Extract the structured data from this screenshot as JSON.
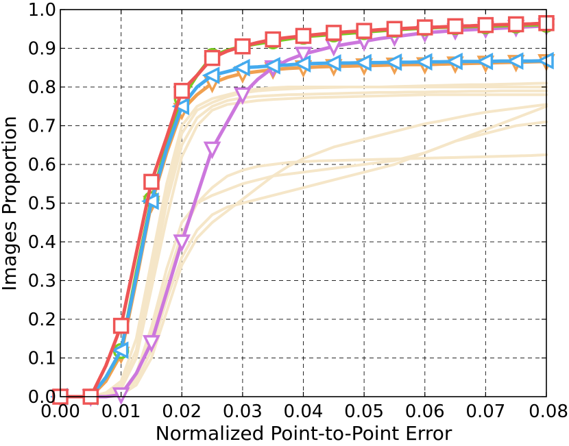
{
  "chart_data": {
    "type": "line",
    "title": "",
    "xlabel": "Normalized Point-to-Point Error",
    "ylabel": "Images Proportion",
    "xlim": [
      0,
      0.08
    ],
    "ylim": [
      0,
      1.0
    ],
    "grid": true,
    "x_ticks": [
      "0.00",
      "0.01",
      "0.02",
      "0.03",
      "0.04",
      "0.05",
      "0.06",
      "0.07",
      "0.08"
    ],
    "y_ticks": [
      "0.0",
      "0.1",
      "0.2",
      "0.3",
      "0.4",
      "0.5",
      "0.6",
      "0.7",
      "0.8",
      "0.9",
      "1.0"
    ],
    "x": [
      0,
      0.0025,
      0.005,
      0.0075,
      0.01,
      0.0125,
      0.015,
      0.0175,
      0.02,
      0.0225,
      0.025,
      0.0275,
      0.03,
      0.0325,
      0.035,
      0.0375,
      0.04,
      0.0425,
      0.045,
      0.0475,
      0.05,
      0.0525,
      0.055,
      0.0575,
      0.06,
      0.0625,
      0.065,
      0.0675,
      0.07,
      0.0725,
      0.075,
      0.0775,
      0.08
    ],
    "background_series": [
      {
        "color": "#f5e6c8",
        "values": [
          0,
          0,
          0,
          0.01,
          0.03,
          0.12,
          0.32,
          0.52,
          0.68,
          0.74,
          0.76,
          0.775,
          0.785,
          0.79,
          0.793,
          0.795,
          0.797,
          0.798,
          0.799,
          0.8,
          0.8,
          0.8,
          0.801,
          0.802,
          0.803,
          0.804,
          0.805,
          0.806,
          0.806,
          0.807,
          0.808,
          0.809,
          0.81
        ]
      },
      {
        "color": "#f5e6c8",
        "values": [
          0,
          0,
          0,
          0.005,
          0.02,
          0.1,
          0.3,
          0.5,
          0.65,
          0.72,
          0.75,
          0.765,
          0.772,
          0.776,
          0.778,
          0.78,
          0.781,
          0.782,
          0.783,
          0.784,
          0.785,
          0.786,
          0.786,
          0.787,
          0.787,
          0.788,
          0.788,
          0.789,
          0.789,
          0.79,
          0.79,
          0.79,
          0.79
        ]
      },
      {
        "color": "#f5e6c8",
        "values": [
          0,
          0,
          0,
          0.01,
          0.04,
          0.15,
          0.35,
          0.55,
          0.7,
          0.75,
          0.77,
          0.78,
          0.79,
          0.795,
          0.798,
          0.8,
          0.8,
          0.8,
          0.8,
          0.8,
          0.8,
          0.8,
          0.8,
          0.8,
          0.8,
          0.8,
          0.8,
          0.8,
          0.8,
          0.8,
          0.8,
          0.8,
          0.8
        ]
      },
      {
        "color": "#f5e6c8",
        "values": [
          0,
          0,
          0,
          0.005,
          0.02,
          0.1,
          0.28,
          0.46,
          0.62,
          0.7,
          0.74,
          0.755,
          0.76,
          0.765,
          0.768,
          0.77,
          0.772,
          0.773,
          0.774,
          0.775,
          0.776,
          0.777,
          0.778,
          0.779,
          0.78,
          0.78,
          0.78,
          0.78,
          0.78,
          0.78,
          0.78,
          0.78,
          0.78
        ]
      },
      {
        "color": "#f5e6c8",
        "values": [
          0,
          0,
          0,
          0,
          0.01,
          0.05,
          0.16,
          0.3,
          0.42,
          0.5,
          0.54,
          0.57,
          0.585,
          0.595,
          0.6,
          0.605,
          0.607,
          0.609,
          0.61,
          0.611,
          0.612,
          0.613,
          0.614,
          0.615,
          0.616,
          0.617,
          0.618,
          0.619,
          0.62,
          0.621,
          0.622,
          0.623,
          0.625
        ]
      },
      {
        "color": "#f5e6c8",
        "values": [
          0,
          0,
          0,
          0,
          0.01,
          0.06,
          0.18,
          0.33,
          0.45,
          0.5,
          0.52,
          0.535,
          0.55,
          0.56,
          0.57,
          0.575,
          0.58,
          0.585,
          0.59,
          0.595,
          0.6,
          0.605,
          0.61,
          0.62,
          0.63,
          0.645,
          0.66,
          0.67,
          0.68,
          0.69,
          0.7,
          0.705,
          0.71
        ]
      },
      {
        "color": "#f5e6c8",
        "values": [
          0,
          0,
          0,
          0,
          0.005,
          0.04,
          0.12,
          0.25,
          0.36,
          0.43,
          0.47,
          0.49,
          0.5,
          0.51,
          0.52,
          0.53,
          0.54,
          0.55,
          0.56,
          0.57,
          0.58,
          0.59,
          0.6,
          0.615,
          0.63,
          0.645,
          0.66,
          0.675,
          0.69,
          0.705,
          0.72,
          0.735,
          0.75
        ]
      },
      {
        "color": "#f5e6c8",
        "values": [
          0,
          0,
          0,
          0,
          0.005,
          0.03,
          0.1,
          0.22,
          0.34,
          0.41,
          0.45,
          0.48,
          0.51,
          0.54,
          0.57,
          0.595,
          0.615,
          0.63,
          0.645,
          0.655,
          0.665,
          0.675,
          0.685,
          0.695,
          0.705,
          0.712,
          0.72,
          0.728,
          0.735,
          0.74,
          0.745,
          0.75,
          0.755
        ]
      }
    ],
    "series": [
      {
        "color": "#f0a050",
        "marker": "triangle-down",
        "values": [
          0,
          0,
          0,
          0.04,
          0.11,
          0.3,
          0.5,
          0.63,
          0.74,
          0.78,
          0.81,
          0.825,
          0.835,
          0.84,
          0.845,
          0.848,
          0.85,
          0.852,
          0.853,
          0.854,
          0.855,
          0.856,
          0.857,
          0.858,
          0.858,
          0.859,
          0.86,
          0.861,
          0.862,
          0.863,
          0.864,
          0.865,
          0.866
        ]
      },
      {
        "color": "#cc77dd",
        "marker": "triangle-down",
        "values": [
          0,
          0,
          0,
          0,
          0.005,
          0.06,
          0.14,
          0.27,
          0.4,
          0.52,
          0.64,
          0.71,
          0.78,
          0.82,
          0.85,
          0.87,
          0.885,
          0.895,
          0.905,
          0.912,
          0.918,
          0.925,
          0.93,
          0.935,
          0.94,
          0.943,
          0.946,
          0.948,
          0.95,
          0.952,
          0.954,
          0.956,
          0.958
        ]
      },
      {
        "color": "#77cc22",
        "marker": "circle",
        "values": [
          0,
          0,
          0,
          0.05,
          0.118,
          0.32,
          0.51,
          0.65,
          0.77,
          0.83,
          0.88,
          0.895,
          0.905,
          0.912,
          0.918,
          0.924,
          0.93,
          0.933,
          0.936,
          0.939,
          0.942,
          0.945,
          0.948,
          0.95,
          0.952,
          0.954,
          0.955,
          0.956,
          0.957,
          0.958,
          0.959,
          0.96,
          0.961
        ]
      },
      {
        "color": "#44aaee",
        "marker": "triangle-left",
        "values": [
          0,
          0,
          0,
          0.05,
          0.12,
          0.31,
          0.505,
          0.64,
          0.75,
          0.8,
          0.83,
          0.84,
          0.85,
          0.852,
          0.855,
          0.857,
          0.86,
          0.861,
          0.862,
          0.862,
          0.863,
          0.863,
          0.864,
          0.864,
          0.865,
          0.865,
          0.866,
          0.866,
          0.866,
          0.867,
          0.867,
          0.867,
          0.868
        ]
      },
      {
        "color": "#ee5555",
        "marker": "square",
        "values": [
          0,
          0,
          0,
          0.08,
          0.183,
          0.37,
          0.555,
          0.67,
          0.79,
          0.83,
          0.875,
          0.893,
          0.905,
          0.915,
          0.923,
          0.928,
          0.932,
          0.936,
          0.94,
          0.943,
          0.945,
          0.948,
          0.95,
          0.952,
          0.954,
          0.955,
          0.957,
          0.958,
          0.96,
          0.961,
          0.962,
          0.963,
          0.965
        ]
      }
    ],
    "marker_every": 2
  }
}
